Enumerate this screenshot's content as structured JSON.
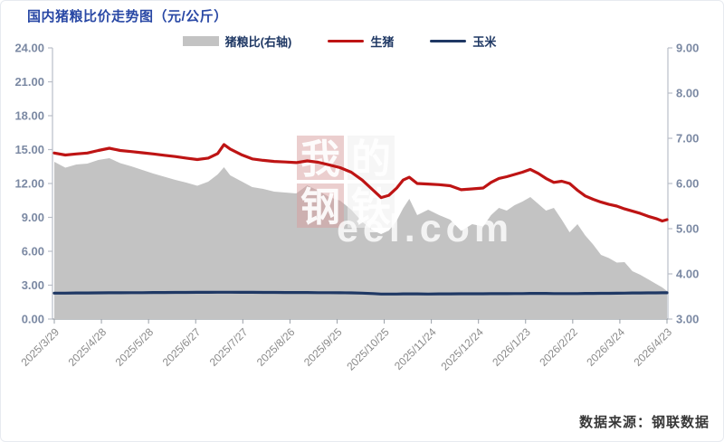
{
  "title": "国内猪粮比价走势图（元/公斤）",
  "source": "数据来源：钢联数据",
  "legend": {
    "items": [
      {
        "label": "猪粮比(右轴)",
        "marker": "area",
        "color": "#c3c3c3"
      },
      {
        "label": "生猪",
        "marker": "line",
        "color": "#be1414"
      },
      {
        "label": "玉米",
        "marker": "line",
        "color": "#1f3864"
      }
    ]
  },
  "watermark": {
    "chars": [
      "我",
      "的",
      "钢",
      "铁"
    ],
    "text": "eel.com"
  },
  "colors": {
    "title": "#2948a5",
    "legend_text": "#1f3864",
    "left_axis_text": "#7b89a3",
    "right_axis_text": "#7b89a3",
    "x_axis_text": "#8a8a8a",
    "axis_line": "#b9bec7",
    "baseline": "#9aa0a8",
    "area_fill": "#c3c3c3",
    "pig_line": "#be1414",
    "corn_line": "#1f3864"
  },
  "chart_data": {
    "type": "line",
    "title": "国内猪粮比价走势图（元/公斤）",
    "legend_position": "top",
    "grid": false,
    "x_ticks": {
      "days": [
        0,
        30,
        60,
        90,
        120,
        150,
        180,
        210,
        240,
        270,
        300,
        330,
        360,
        390
      ],
      "labels": [
        "2025/3/29",
        "2025/4/28",
        "2025/5/28",
        "2025/6/27",
        "2025/7/27",
        "2025/8/26",
        "2025/9/25",
        "2025/10/25",
        "2025/11/24",
        "2025/12/24",
        "2026/1/23",
        "2026/2/22",
        "2026/3/24",
        "2026/4/23"
      ]
    },
    "left_axis": {
      "min": 0,
      "max": 24,
      "tick_values": [
        24,
        21,
        18,
        15,
        12,
        9,
        6,
        3,
        0
      ],
      "tick_labels": [
        "24.00",
        "21.00",
        "18.00",
        "15.00",
        "12.00",
        "9.00",
        "6.00",
        "3.00",
        "0.00"
      ]
    },
    "right_axis": {
      "min": 3,
      "max": 9,
      "tick_values": [
        9,
        8,
        7,
        6,
        5,
        4,
        3
      ],
      "tick_labels": [
        "9.00",
        "8.00",
        "7.00",
        "6.00",
        "5.00",
        "4.00",
        "3.00"
      ]
    },
    "x_days": [
      0,
      7,
      14,
      21,
      28,
      35,
      42,
      49,
      56,
      63,
      70,
      77,
      84,
      91,
      98,
      104,
      108,
      112,
      119,
      126,
      133,
      140,
      147,
      154,
      161,
      168,
      175,
      182,
      189,
      196,
      203,
      208,
      213,
      218,
      222,
      226,
      231,
      238,
      245,
      252,
      259,
      266,
      273,
      278,
      283,
      288,
      293,
      298,
      303,
      308,
      313,
      318,
      323,
      328,
      333,
      338,
      343,
      348,
      353,
      358,
      363,
      368,
      373,
      378,
      383,
      387,
      390
    ],
    "series": [
      {
        "name": "猪粮比(右轴)",
        "type": "area",
        "axis": "right",
        "color": "#c3c3c3",
        "values": [
          6.48,
          6.35,
          6.42,
          6.44,
          6.52,
          6.56,
          6.45,
          6.38,
          6.3,
          6.22,
          6.15,
          6.08,
          6.02,
          5.95,
          6.04,
          6.2,
          6.36,
          6.18,
          6.05,
          5.92,
          5.88,
          5.82,
          5.8,
          5.78,
          5.96,
          5.84,
          5.7,
          5.62,
          5.42,
          5.15,
          4.96,
          4.88,
          4.96,
          5.18,
          5.45,
          5.66,
          5.3,
          5.42,
          5.3,
          5.2,
          4.95,
          5.1,
          5.05,
          5.3,
          5.46,
          5.4,
          5.52,
          5.6,
          5.7,
          5.55,
          5.4,
          5.46,
          5.2,
          4.92,
          5.1,
          4.85,
          4.65,
          4.42,
          4.35,
          4.25,
          4.26,
          4.06,
          3.98,
          3.88,
          3.78,
          3.7,
          3.62
        ]
      },
      {
        "name": "生猪",
        "type": "line",
        "axis": "left",
        "color": "#be1414",
        "values": [
          14.7,
          14.52,
          14.62,
          14.7,
          14.92,
          15.12,
          14.92,
          14.82,
          14.72,
          14.62,
          14.5,
          14.38,
          14.25,
          14.12,
          14.25,
          14.65,
          15.45,
          15.05,
          14.55,
          14.18,
          14.05,
          13.95,
          13.9,
          13.85,
          14.0,
          13.88,
          13.65,
          13.4,
          13.0,
          12.3,
          11.4,
          10.75,
          10.95,
          11.6,
          12.3,
          12.55,
          12.0,
          11.95,
          11.9,
          11.8,
          11.45,
          11.52,
          11.6,
          12.1,
          12.45,
          12.6,
          12.8,
          13.0,
          13.25,
          12.9,
          12.45,
          12.1,
          12.2,
          12.0,
          11.4,
          10.9,
          10.6,
          10.35,
          10.15,
          10.0,
          9.75,
          9.55,
          9.35,
          9.1,
          8.9,
          8.68,
          8.8
        ]
      },
      {
        "name": "玉米",
        "type": "line",
        "axis": "left",
        "color": "#1f3864",
        "values": [
          2.3,
          2.3,
          2.31,
          2.31,
          2.32,
          2.33,
          2.33,
          2.34,
          2.34,
          2.35,
          2.35,
          2.36,
          2.36,
          2.37,
          2.37,
          2.38,
          2.38,
          2.38,
          2.37,
          2.37,
          2.36,
          2.36,
          2.35,
          2.35,
          2.35,
          2.34,
          2.34,
          2.33,
          2.32,
          2.3,
          2.26,
          2.22,
          2.22,
          2.22,
          2.23,
          2.23,
          2.23,
          2.22,
          2.23,
          2.23,
          2.24,
          2.24,
          2.24,
          2.25,
          2.25,
          2.25,
          2.26,
          2.26,
          2.27,
          2.27,
          2.27,
          2.26,
          2.26,
          2.26,
          2.26,
          2.27,
          2.27,
          2.28,
          2.28,
          2.29,
          2.3,
          2.31,
          2.31,
          2.32,
          2.32,
          2.33,
          2.33
        ]
      }
    ]
  }
}
